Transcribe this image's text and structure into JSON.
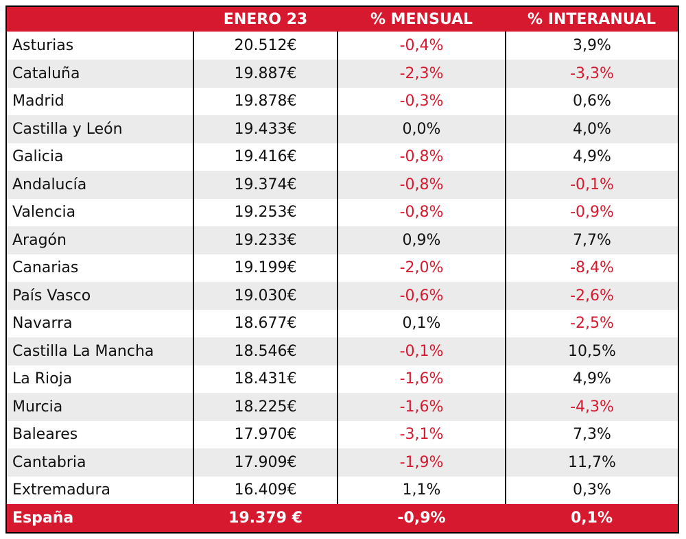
{
  "table": {
    "header": [
      "",
      "ENERO 23",
      "% MENSUAL",
      "% INTERANUAL"
    ],
    "rows": [
      [
        "Asturias",
        "20.512€",
        "-0,4%",
        "3,9%"
      ],
      [
        "Cataluña",
        "19.887€",
        "-2,3%",
        "-3,3%"
      ],
      [
        "Madrid",
        "19.878€",
        "-0,3%",
        "0,6%"
      ],
      [
        "Castilla y León",
        "19.433€",
        "0,0%",
        "4,0%"
      ],
      [
        "Galicia",
        "19.416€",
        "-0,8%",
        "4,9%"
      ],
      [
        "Andalucía",
        "19.374€",
        "-0,8%",
        "-0,1%"
      ],
      [
        "Valencia",
        "19.253€",
        "-0,8%",
        "-0,9%"
      ],
      [
        "Aragón",
        "19.233€",
        "0,9%",
        "7,7%"
      ],
      [
        "Canarias",
        "19.199€",
        "-2,0%",
        "-8,4%"
      ],
      [
        "País Vasco",
        "19.030€",
        "-0,6%",
        "-2,6%"
      ],
      [
        "Navarra",
        "18.677€",
        "0,1%",
        "-2,5%"
      ],
      [
        "Castilla La Mancha",
        "18.546€",
        "-0,1%",
        "10,5%"
      ],
      [
        "La Rioja",
        "18.431€",
        "-1,6%",
        "4,9%"
      ],
      [
        "Murcia",
        "18.225€",
        "-1,6%",
        "-4,3%"
      ],
      [
        "Baleares",
        "17.970€",
        "-3,1%",
        "7,3%"
      ],
      [
        "Cantabria",
        "17.909€",
        "-1,9%",
        "11,7%"
      ],
      [
        "Extremadura",
        "16.409€",
        "1,1%",
        "0,3%"
      ]
    ],
    "footer": [
      "España",
      "19.379 €",
      "-0,9%",
      "0,1%"
    ]
  }
}
